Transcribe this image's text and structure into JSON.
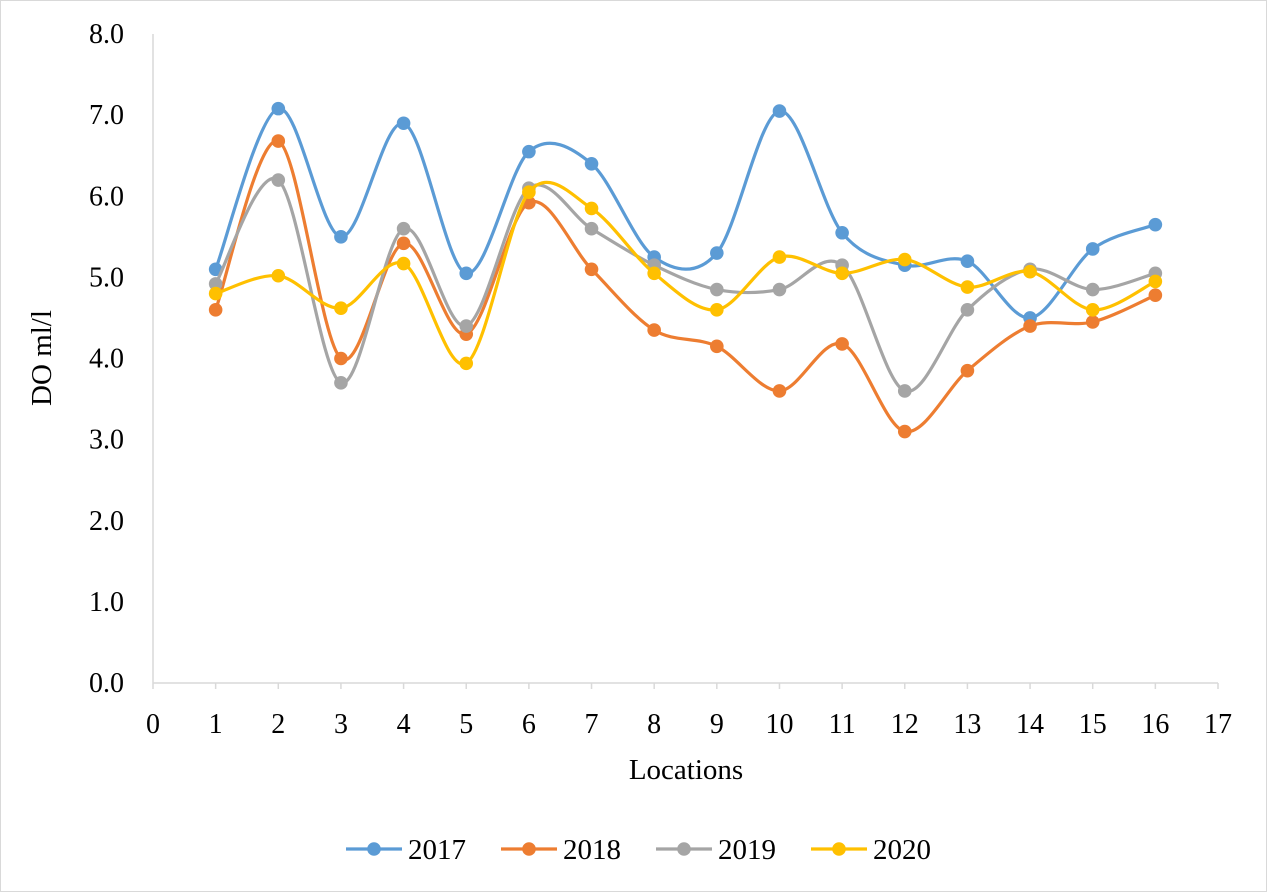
{
  "chart_data": {
    "type": "line",
    "smooth": true,
    "title": "",
    "xlabel": "Locations",
    "ylabel": "DO ml/l",
    "xlim": [
      0,
      17
    ],
    "ylim": [
      0,
      8
    ],
    "x_ticks": [
      "0",
      "1",
      "2",
      "3",
      "4",
      "5",
      "6",
      "7",
      "8",
      "9",
      "10",
      "11",
      "12",
      "13",
      "14",
      "15",
      "16",
      "17"
    ],
    "y_ticks": [
      "0.0",
      "1.0",
      "2.0",
      "3.0",
      "4.0",
      "5.0",
      "6.0",
      "7.0",
      "8.0"
    ],
    "x": [
      1,
      2,
      3,
      4,
      5,
      6,
      7,
      8,
      9,
      10,
      11,
      12,
      13,
      14,
      15,
      16
    ],
    "legend_position": "bottom",
    "grid": false,
    "series": [
      {
        "name": "2017",
        "color": "#5b9bd5",
        "values": [
          5.1,
          7.08,
          5.5,
          6.9,
          5.05,
          6.55,
          6.4,
          5.25,
          5.3,
          7.05,
          5.55,
          5.15,
          5.2,
          4.5,
          5.35,
          5.65
        ]
      },
      {
        "name": "2018",
        "color": "#ed7d31",
        "values": [
          4.6,
          6.68,
          4.0,
          5.42,
          4.3,
          5.92,
          5.1,
          4.35,
          4.15,
          3.6,
          4.18,
          3.1,
          3.85,
          4.4,
          4.45,
          4.78
        ]
      },
      {
        "name": "2019",
        "color": "#a5a5a5",
        "values": [
          4.92,
          6.2,
          3.7,
          5.6,
          4.4,
          6.1,
          5.6,
          5.15,
          4.85,
          4.85,
          5.15,
          3.6,
          4.6,
          5.1,
          4.85,
          5.05
        ]
      },
      {
        "name": "2020",
        "color": "#ffc000",
        "values": [
          4.8,
          5.02,
          4.62,
          5.17,
          3.94,
          6.05,
          5.85,
          5.05,
          4.6,
          5.25,
          5.05,
          5.22,
          4.88,
          5.07,
          4.6,
          4.95
        ]
      }
    ]
  }
}
